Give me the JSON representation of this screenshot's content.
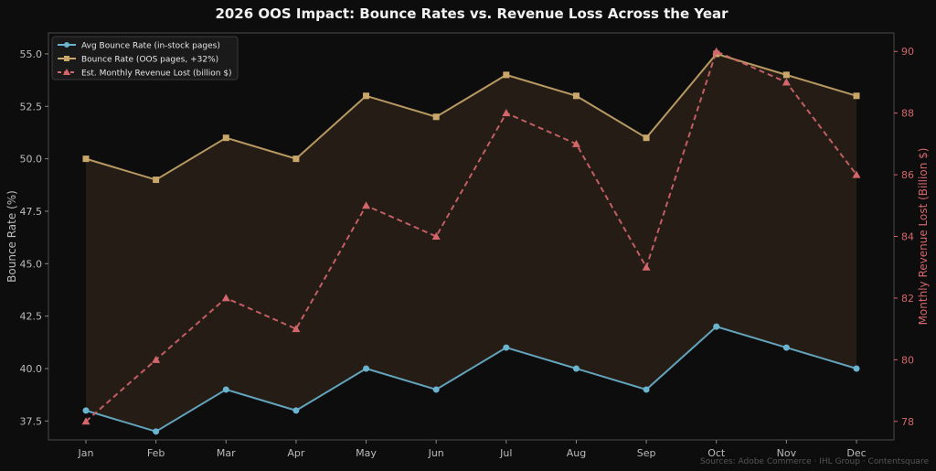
{
  "chart_data": {
    "type": "line",
    "title": "2026 OOS Impact: Bounce Rates vs. Revenue Loss Across the Year",
    "categories": [
      "Jan",
      "Feb",
      "Mar",
      "Apr",
      "May",
      "Jun",
      "Jul",
      "Aug",
      "Sep",
      "Oct",
      "Nov",
      "Dec"
    ],
    "series": [
      {
        "name": "Avg Bounce Rate (in-stock pages)",
        "axis": "left",
        "marker": "circle",
        "line": "solid",
        "color": "#6bb4cf",
        "values": [
          38,
          37,
          39,
          38,
          40,
          39,
          41,
          40,
          39,
          42,
          41,
          40
        ]
      },
      {
        "name": "Bounce Rate (OOS pages, +32%)",
        "axis": "left",
        "marker": "square",
        "line": "solid",
        "color": "#c9a76a",
        "values": [
          50,
          49,
          51,
          50,
          53,
          52,
          54,
          53,
          51,
          55,
          54,
          53
        ]
      },
      {
        "name": "Est. Monthly Revenue Lost (billion $)",
        "axis": "right",
        "marker": "triangle",
        "line": "dashed",
        "color": "#d4666b",
        "values": [
          78,
          80,
          82,
          81,
          85,
          84,
          88,
          87,
          83,
          90,
          89,
          86
        ]
      }
    ],
    "fill_between": {
      "series": [
        0,
        1
      ],
      "color": "#2a2118"
    },
    "ylabel": "Bounce Rate (%)",
    "y2label": "Monthly Revenue Lost (Billion $)",
    "ylim": [
      36.6,
      56.0
    ],
    "y2lim": [
      77.4,
      90.6
    ],
    "yticks": [
      "37.5",
      "40.0",
      "42.5",
      "45.0",
      "47.5",
      "50.0",
      "52.5",
      "55.0"
    ],
    "y2ticks": [
      "78",
      "80",
      "82",
      "84",
      "86",
      "88",
      "90"
    ],
    "grid": false,
    "legend_position": "top-left",
    "source": "Sources: Adobe Commerce · IHL Group · Contentsquare",
    "colors": {
      "background": "#0d0d0d",
      "axis": "#4a4a4a",
      "text": "#bbbbbb",
      "right_axis": "#d4666b"
    }
  }
}
